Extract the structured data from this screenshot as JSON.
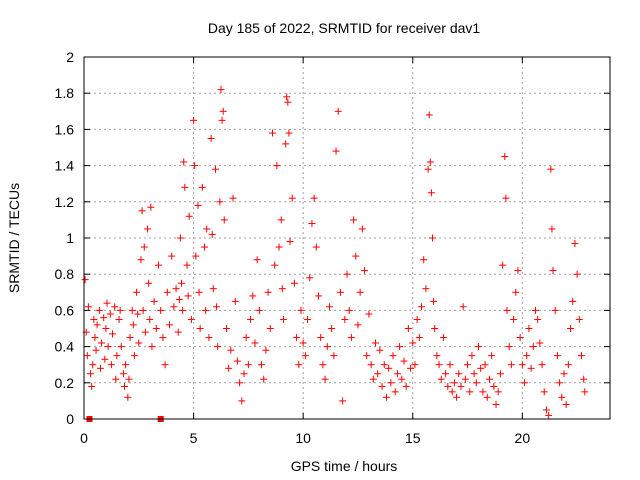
{
  "chart_data": {
    "type": "scatter",
    "title": "Day 185 of 2022, SRMTID for receiver dav1",
    "xlabel": "GPS time / hours",
    "ylabel": "SRMTID / TECUs",
    "xlim": [
      0,
      24
    ],
    "ylim": [
      0,
      2
    ],
    "xticks": [
      0,
      5,
      10,
      15,
      20
    ],
    "yticks": [
      0,
      0.2,
      0.4,
      0.6,
      0.8,
      1,
      1.2,
      1.4,
      1.6,
      1.8,
      2
    ],
    "grid": true,
    "marker": "plus",
    "color": "#ff0000",
    "series": [
      {
        "name": "SRMTID",
        "points": [
          [
            0.05,
            0.77
          ],
          [
            0.1,
            0.48
          ],
          [
            0.15,
            0.35
          ],
          [
            0.2,
            0.62
          ],
          [
            0.3,
            0.25
          ],
          [
            0.35,
            0.18
          ],
          [
            0.4,
            0.3
          ],
          [
            0.45,
            0.55
          ],
          [
            0.5,
            0.45
          ],
          [
            0.55,
            0.38
          ],
          [
            0.6,
            0.52
          ],
          [
            0.7,
            0.6
          ],
          [
            0.75,
            0.28
          ],
          [
            0.8,
            0.42
          ],
          [
            0.9,
            0.56
          ],
          [
            0.95,
            0.33
          ],
          [
            1.0,
            0.5
          ],
          [
            1.05,
            0.64
          ],
          [
            1.1,
            0.4
          ],
          [
            1.2,
            0.58
          ],
          [
            1.25,
            0.3
          ],
          [
            1.3,
            0.47
          ],
          [
            1.4,
            0.62
          ],
          [
            1.45,
            0.22
          ],
          [
            1.5,
            0.35
          ],
          [
            1.6,
            0.55
          ],
          [
            1.65,
            0.6
          ],
          [
            1.7,
            0.4
          ],
          [
            1.8,
            0.25
          ],
          [
            1.85,
            0.18
          ],
          [
            1.9,
            0.3
          ],
          [
            2.0,
            0.12
          ],
          [
            2.05,
            0.22
          ],
          [
            2.1,
            0.45
          ],
          [
            2.2,
            0.6
          ],
          [
            2.25,
            0.52
          ],
          [
            2.3,
            0.35
          ],
          [
            2.4,
            0.7
          ],
          [
            2.45,
            0.58
          ],
          [
            2.5,
            0.42
          ],
          [
            2.6,
            0.88
          ],
          [
            2.65,
            1.15
          ],
          [
            2.7,
            0.6
          ],
          [
            2.75,
            0.95
          ],
          [
            2.8,
            0.48
          ],
          [
            2.9,
            1.05
          ],
          [
            2.95,
            0.75
          ],
          [
            3.0,
            0.55
          ],
          [
            3.05,
            1.17
          ],
          [
            3.1,
            0.4
          ],
          [
            3.2,
            0.65
          ],
          [
            3.3,
            0.5
          ],
          [
            3.4,
            0.85
          ],
          [
            3.5,
            0.6
          ],
          [
            3.6,
            0.45
          ],
          [
            3.7,
            0.3
          ],
          [
            3.8,
            0.7
          ],
          [
            3.9,
            0.52
          ],
          [
            4.0,
            0.9
          ],
          [
            4.1,
            0.62
          ],
          [
            4.2,
            0.72
          ],
          [
            4.3,
            0.48
          ],
          [
            4.35,
            0.66
          ],
          [
            4.4,
            1.0
          ],
          [
            4.45,
            0.75
          ],
          [
            4.5,
            0.6
          ],
          [
            4.55,
            1.42
          ],
          [
            4.6,
            1.28
          ],
          [
            4.7,
            0.85
          ],
          [
            4.75,
            0.68
          ],
          [
            4.8,
            1.12
          ],
          [
            4.9,
            0.55
          ],
          [
            5.0,
            1.65
          ],
          [
            5.05,
            1.4
          ],
          [
            5.1,
            0.9
          ],
          [
            5.2,
            1.18
          ],
          [
            5.25,
            0.7
          ],
          [
            5.3,
            0.5
          ],
          [
            5.4,
            1.28
          ],
          [
            5.5,
            0.95
          ],
          [
            5.55,
            0.6
          ],
          [
            5.6,
            1.05
          ],
          [
            5.7,
            0.45
          ],
          [
            5.8,
            1.55
          ],
          [
            5.85,
            1.02
          ],
          [
            5.9,
            0.72
          ],
          [
            6.0,
            1.38
          ],
          [
            6.05,
            0.62
          ],
          [
            6.1,
            0.4
          ],
          [
            6.2,
            1.2
          ],
          [
            6.25,
            1.82
          ],
          [
            6.3,
            1.65
          ],
          [
            6.35,
            1.7
          ],
          [
            6.4,
            1.1
          ],
          [
            6.5,
            0.5
          ],
          [
            6.6,
            0.28
          ],
          [
            6.7,
            0.38
          ],
          [
            6.8,
            1.22
          ],
          [
            6.9,
            0.65
          ],
          [
            7.0,
            0.32
          ],
          [
            7.1,
            0.2
          ],
          [
            7.2,
            0.1
          ],
          [
            7.3,
            0.25
          ],
          [
            7.4,
            0.45
          ],
          [
            7.5,
            0.3
          ],
          [
            7.6,
            0.55
          ],
          [
            7.7,
            0.68
          ],
          [
            7.8,
            0.42
          ],
          [
            7.9,
            0.88
          ],
          [
            8.0,
            0.6
          ],
          [
            8.1,
            0.3
          ],
          [
            8.2,
            0.22
          ],
          [
            8.3,
            0.38
          ],
          [
            8.4,
            0.7
          ],
          [
            8.5,
            0.5
          ],
          [
            8.6,
            1.58
          ],
          [
            8.7,
            0.85
          ],
          [
            8.8,
            1.4
          ],
          [
            8.9,
            0.95
          ],
          [
            9.0,
            1.1
          ],
          [
            9.05,
            0.72
          ],
          [
            9.1,
            0.55
          ],
          [
            9.2,
            1.52
          ],
          [
            9.25,
            1.78
          ],
          [
            9.3,
            1.75
          ],
          [
            9.35,
            1.58
          ],
          [
            9.4,
            0.98
          ],
          [
            9.5,
            1.22
          ],
          [
            9.6,
            0.75
          ],
          [
            9.7,
            0.45
          ],
          [
            9.8,
            0.3
          ],
          [
            9.9,
            0.6
          ],
          [
            10.0,
            0.42
          ],
          [
            10.1,
            0.35
          ],
          [
            10.2,
            0.55
          ],
          [
            10.3,
            0.78
          ],
          [
            10.4,
            1.08
          ],
          [
            10.5,
            1.22
          ],
          [
            10.6,
            0.95
          ],
          [
            10.7,
            0.68
          ],
          [
            10.8,
            0.45
          ],
          [
            10.9,
            0.3
          ],
          [
            11.0,
            0.22
          ],
          [
            11.1,
            0.4
          ],
          [
            11.2,
            0.62
          ],
          [
            11.3,
            0.5
          ],
          [
            11.4,
            0.35
          ],
          [
            11.5,
            1.48
          ],
          [
            11.6,
            1.7
          ],
          [
            11.7,
            0.7
          ],
          [
            11.8,
            0.1
          ],
          [
            11.9,
            0.55
          ],
          [
            12.0,
            0.8
          ],
          [
            12.1,
            0.6
          ],
          [
            12.2,
            0.45
          ],
          [
            12.3,
            1.1
          ],
          [
            12.4,
            0.9
          ],
          [
            12.5,
            0.52
          ],
          [
            12.6,
            0.7
          ],
          [
            12.7,
            1.05
          ],
          [
            12.8,
            0.82
          ],
          [
            12.9,
            0.35
          ],
          [
            13.0,
            0.58
          ],
          [
            13.1,
            0.3
          ],
          [
            13.2,
            0.22
          ],
          [
            13.3,
            0.42
          ],
          [
            13.4,
            0.25
          ],
          [
            13.5,
            0.38
          ],
          [
            13.6,
            0.18
          ],
          [
            13.7,
            0.3
          ],
          [
            13.8,
            0.12
          ],
          [
            13.9,
            0.28
          ],
          [
            14.0,
            0.2
          ],
          [
            14.1,
            0.35
          ],
          [
            14.2,
            0.15
          ],
          [
            14.3,
            0.25
          ],
          [
            14.4,
            0.4
          ],
          [
            14.5,
            0.22
          ],
          [
            14.6,
            0.32
          ],
          [
            14.7,
            0.18
          ],
          [
            14.8,
            0.5
          ],
          [
            14.9,
            0.28
          ],
          [
            15.0,
            0.42
          ],
          [
            15.1,
            0.3
          ],
          [
            15.2,
            0.55
          ],
          [
            15.3,
            0.45
          ],
          [
            15.4,
            0.62
          ],
          [
            15.5,
            0.88
          ],
          [
            15.6,
            0.72
          ],
          [
            15.7,
            1.38
          ],
          [
            15.75,
            1.68
          ],
          [
            15.8,
            1.42
          ],
          [
            15.85,
            1.25
          ],
          [
            15.9,
            1.0
          ],
          [
            15.95,
            0.65
          ],
          [
            16.0,
            0.5
          ],
          [
            16.1,
            0.35
          ],
          [
            16.2,
            0.3
          ],
          [
            16.3,
            0.22
          ],
          [
            16.4,
            0.45
          ],
          [
            16.5,
            0.25
          ],
          [
            16.6,
            0.18
          ],
          [
            16.7,
            0.3
          ],
          [
            16.8,
            0.15
          ],
          [
            16.9,
            0.2
          ],
          [
            17.0,
            0.12
          ],
          [
            17.1,
            0.25
          ],
          [
            17.2,
            0.18
          ],
          [
            17.3,
            0.62
          ],
          [
            17.4,
            0.22
          ],
          [
            17.5,
            0.3
          ],
          [
            17.6,
            0.15
          ],
          [
            17.7,
            0.35
          ],
          [
            17.8,
            0.25
          ],
          [
            17.9,
            0.2
          ],
          [
            18.0,
            0.4
          ],
          [
            18.1,
            0.28
          ],
          [
            18.2,
            0.15
          ],
          [
            18.3,
            0.3
          ],
          [
            18.4,
            0.12
          ],
          [
            18.5,
            0.22
          ],
          [
            18.6,
            0.35
          ],
          [
            18.7,
            0.18
          ],
          [
            18.8,
            0.08
          ],
          [
            18.9,
            0.15
          ],
          [
            19.0,
            0.25
          ],
          [
            19.1,
            0.85
          ],
          [
            19.2,
            1.45
          ],
          [
            19.25,
            1.22
          ],
          [
            19.3,
            0.6
          ],
          [
            19.4,
            0.4
          ],
          [
            19.5,
            0.3
          ],
          [
            19.6,
            0.55
          ],
          [
            19.7,
            0.7
          ],
          [
            19.8,
            0.82
          ],
          [
            19.9,
            0.45
          ],
          [
            20.0,
            0.3
          ],
          [
            20.1,
            0.2
          ],
          [
            20.2,
            0.35
          ],
          [
            20.3,
            0.5
          ],
          [
            20.4,
            0.28
          ],
          [
            20.5,
            0.4
          ],
          [
            20.6,
            0.6
          ],
          [
            20.7,
            0.55
          ],
          [
            20.8,
            0.42
          ],
          [
            20.9,
            0.3
          ],
          [
            21.0,
            0.15
          ],
          [
            21.1,
            0.05
          ],
          [
            21.2,
            0.02
          ],
          [
            21.3,
            1.38
          ],
          [
            21.35,
            1.05
          ],
          [
            21.4,
            0.82
          ],
          [
            21.5,
            0.6
          ],
          [
            21.6,
            0.35
          ],
          [
            21.7,
            0.2
          ],
          [
            21.8,
            0.12
          ],
          [
            21.9,
            0.25
          ],
          [
            22.0,
            0.08
          ],
          [
            22.1,
            0.3
          ],
          [
            22.2,
            0.5
          ],
          [
            22.3,
            0.65
          ],
          [
            22.4,
            0.97
          ],
          [
            22.5,
            0.8
          ],
          [
            22.6,
            0.55
          ],
          [
            22.7,
            0.35
          ],
          [
            22.8,
            0.22
          ],
          [
            22.85,
            0.15
          ]
        ]
      }
    ],
    "gaps": [
      {
        "x": 0.25,
        "y": 0
      },
      {
        "x": 3.5,
        "y": 0
      }
    ]
  }
}
